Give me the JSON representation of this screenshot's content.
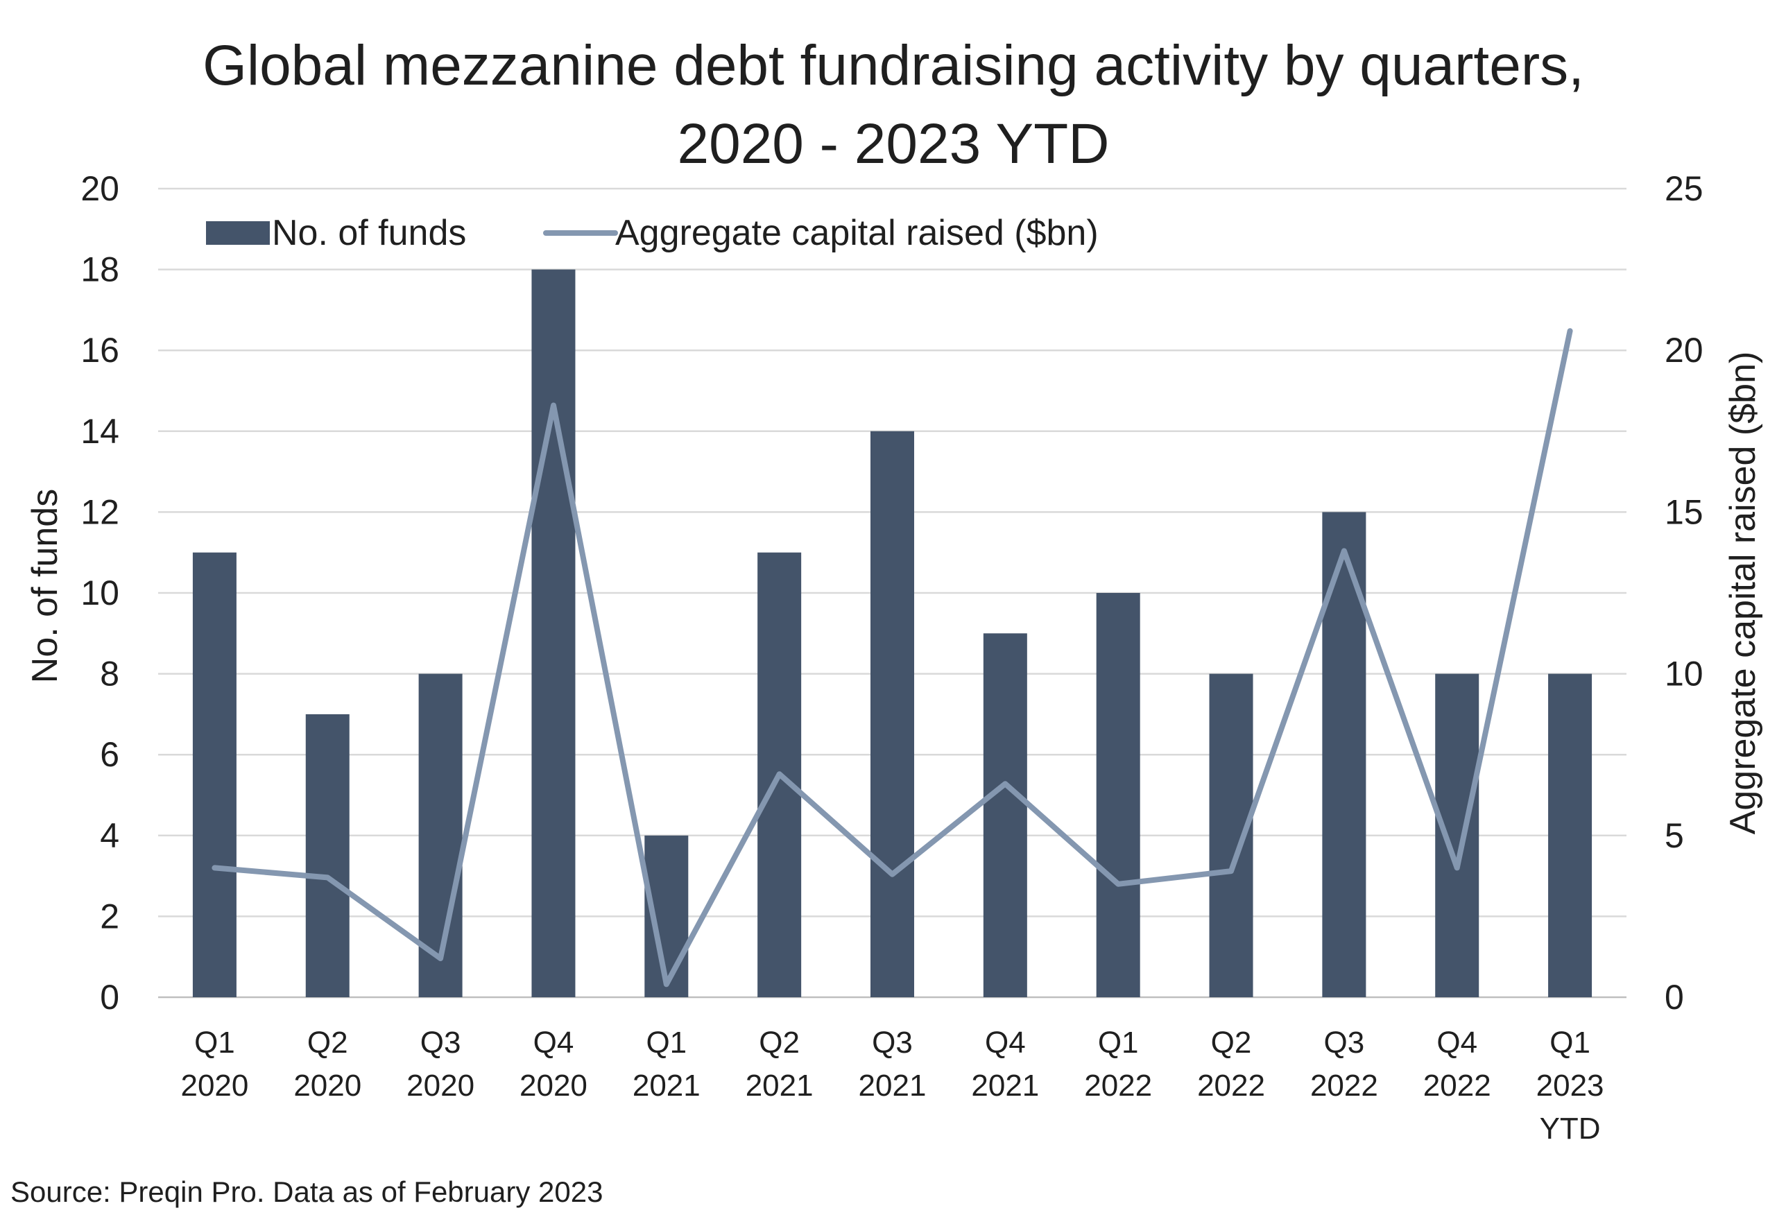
{
  "chart_data": {
    "type": "bar",
    "title_lines": [
      "Global mezzanine debt fundraising activity by quarters,",
      "2020 - 2023 YTD"
    ],
    "categories": [
      [
        "Q1",
        "2020"
      ],
      [
        "Q2",
        "2020"
      ],
      [
        "Q3",
        "2020"
      ],
      [
        "Q4",
        "2020"
      ],
      [
        "Q1",
        "2021"
      ],
      [
        "Q2",
        "2021"
      ],
      [
        "Q3",
        "2021"
      ],
      [
        "Q4",
        "2021"
      ],
      [
        "Q1",
        "2022"
      ],
      [
        "Q2",
        "2022"
      ],
      [
        "Q3",
        "2022"
      ],
      [
        "Q4",
        "2022"
      ],
      [
        "Q1",
        "2023",
        "YTD"
      ]
    ],
    "series": [
      {
        "name": "No. of funds",
        "type": "bar",
        "axis": "left",
        "color": "#44546a",
        "values": [
          11,
          7,
          8,
          18,
          4,
          11,
          14,
          9,
          10,
          8,
          12,
          8,
          8
        ]
      },
      {
        "name": "Aggregate capital raised ($bn)",
        "type": "line",
        "axis": "right",
        "color": "#8497b0",
        "values": [
          4.0,
          3.7,
          1.2,
          18.3,
          0.4,
          6.9,
          3.8,
          6.6,
          3.5,
          3.9,
          13.8,
          4.0,
          20.6
        ]
      }
    ],
    "ylabel": "No. of funds",
    "y2label": "Aggregate capital raised ($bn)",
    "ylim": [
      0,
      20
    ],
    "yticks": [
      0,
      2,
      4,
      6,
      8,
      10,
      12,
      14,
      16,
      18,
      20
    ],
    "y2lim": [
      0,
      25
    ],
    "y2ticks": [
      0,
      5,
      10,
      15,
      20,
      25
    ],
    "grid": true,
    "legend_position": "top-left",
    "source": "Source: Preqin Pro. Data as of February 2023"
  }
}
